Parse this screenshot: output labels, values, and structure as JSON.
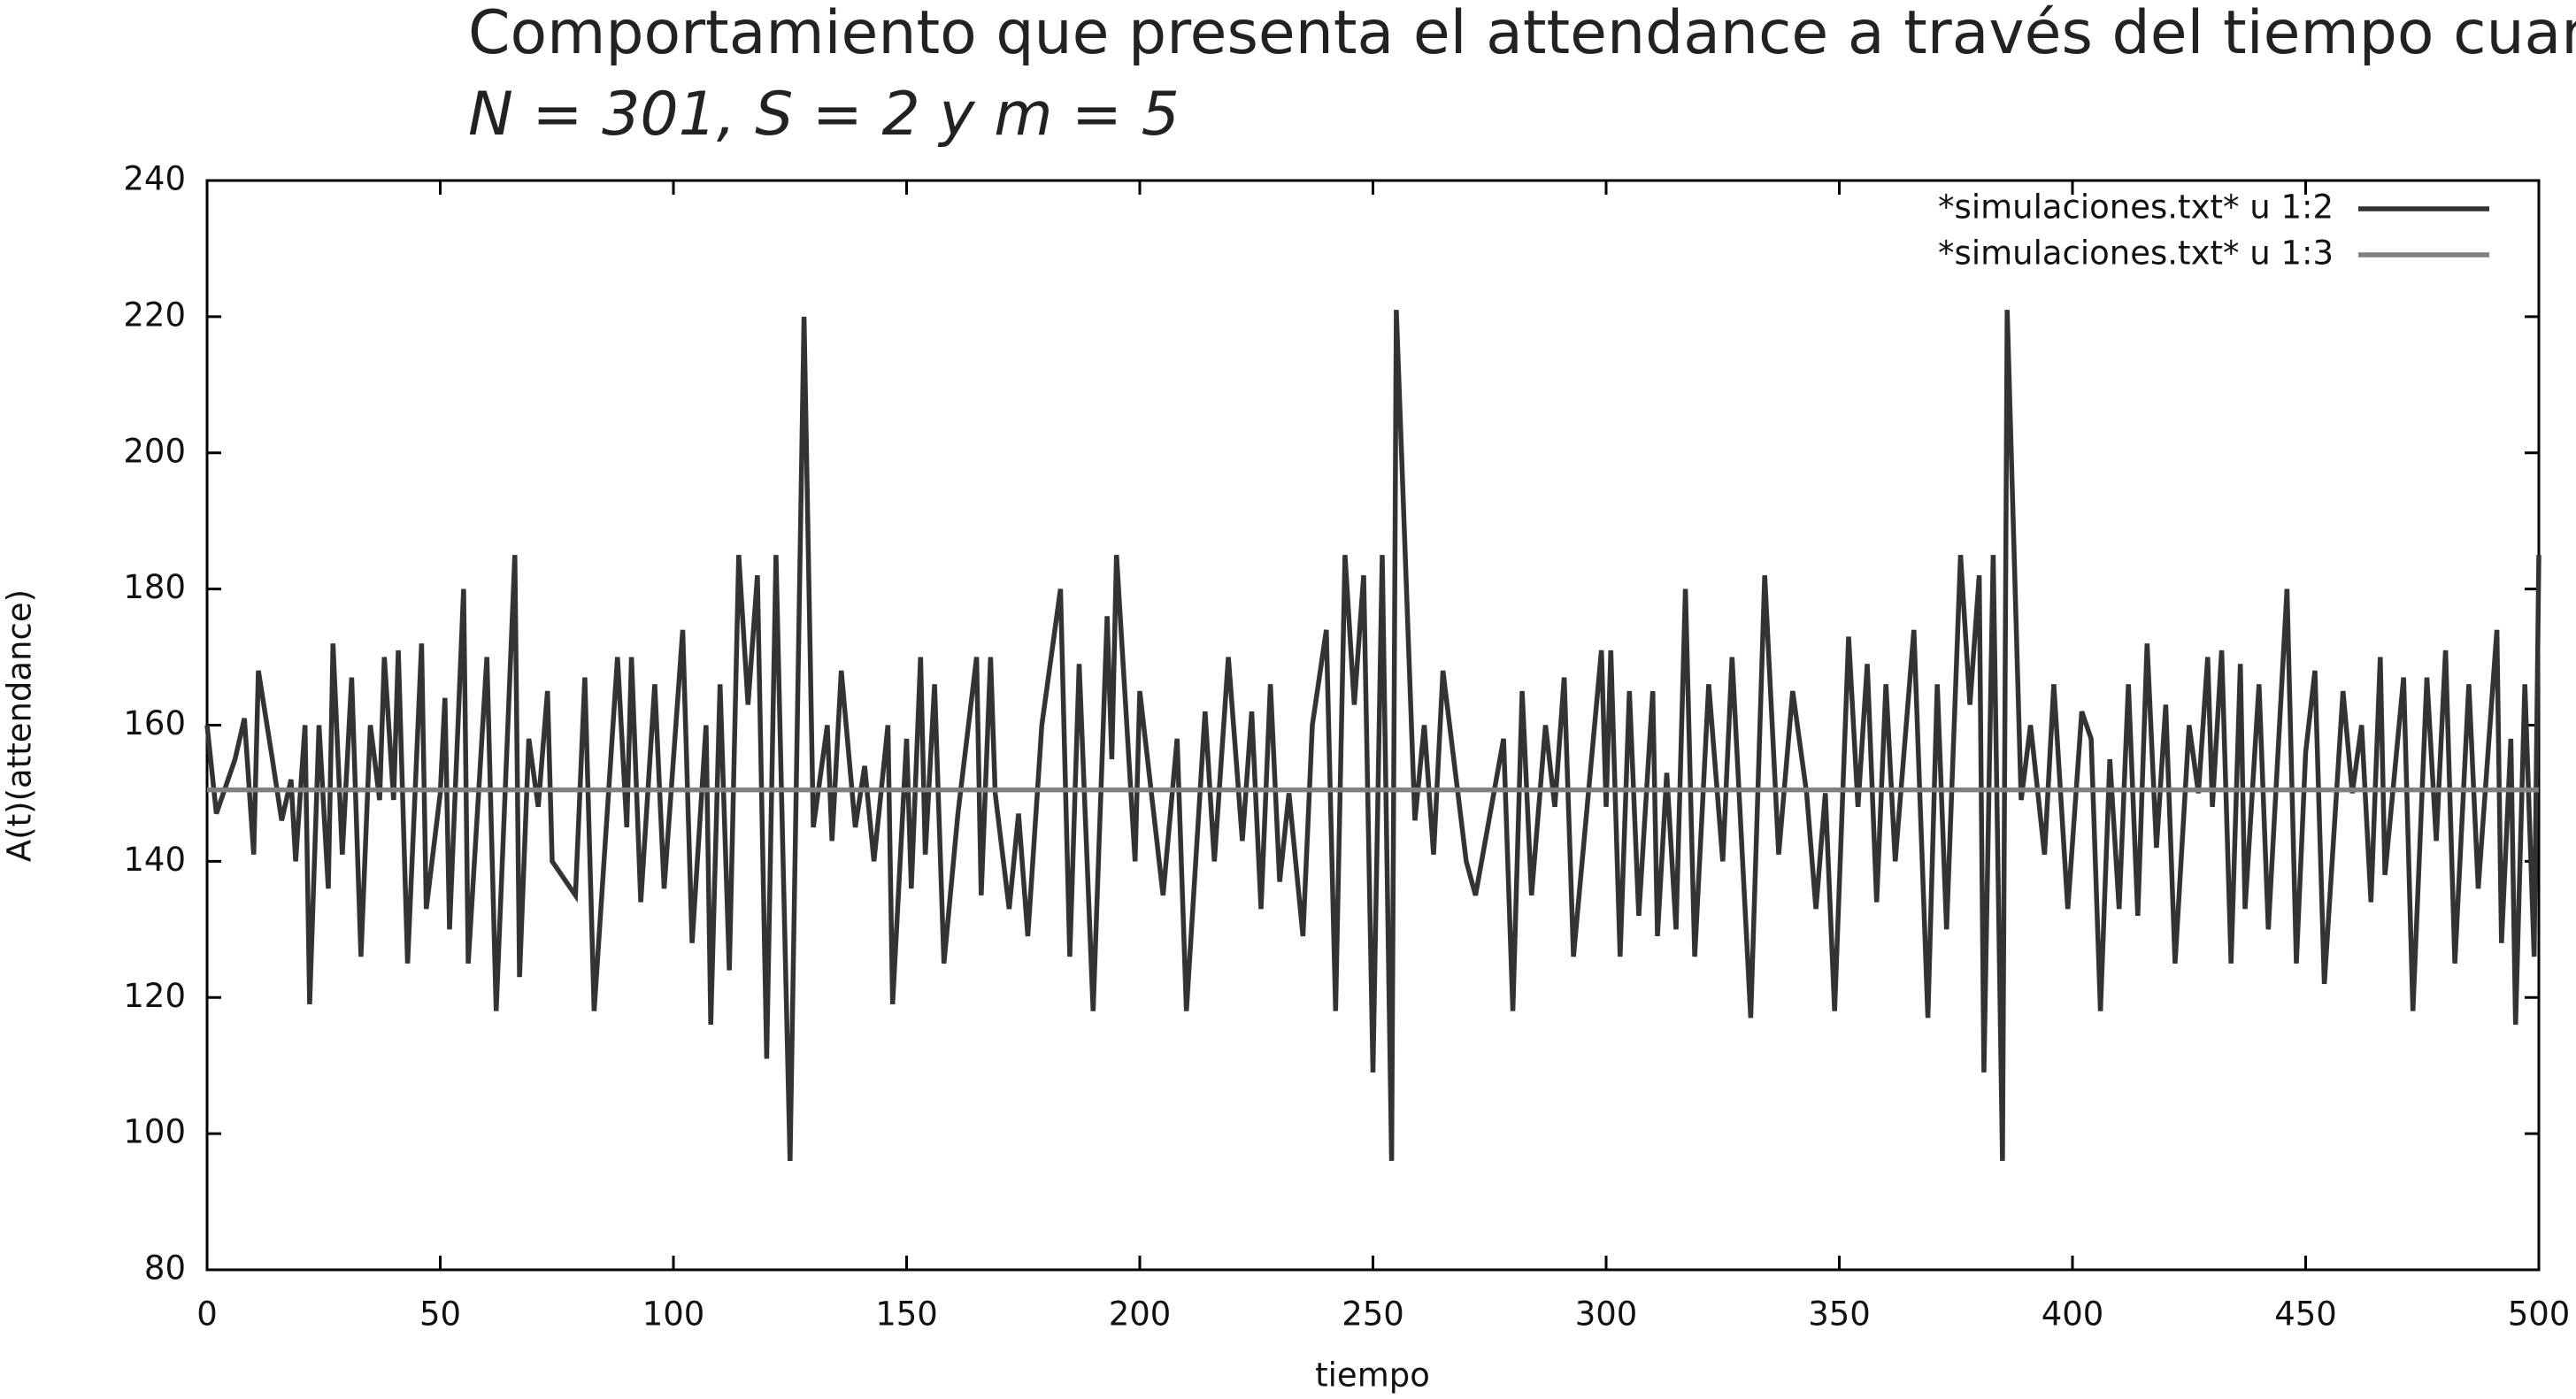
{
  "chart_data": {
    "type": "line",
    "title": [
      "Comportamiento que presenta el attendance a través del tiempo cuando",
      "N = 301, S = 2 y m = 5"
    ],
    "xlabel": "tiempo",
    "ylabel": "A(t)(attendance)",
    "xlim": [
      0,
      500
    ],
    "ylim": [
      80,
      240
    ],
    "xticks": [
      0,
      50,
      100,
      150,
      200,
      250,
      300,
      350,
      400,
      450,
      500
    ],
    "yticks": [
      80,
      100,
      120,
      140,
      160,
      180,
      200,
      220,
      240
    ],
    "legend": "upper right",
    "series": [
      {
        "name": "*simulaciones.txt* u 1:2",
        "color": "#333333",
        "x": [
          0,
          2,
          6,
          8,
          10,
          11,
          14,
          16,
          18,
          19,
          21,
          22,
          24,
          26,
          27,
          29,
          31,
          33,
          35,
          37,
          38,
          40,
          41,
          43,
          46,
          47,
          50,
          51,
          52,
          55,
          56,
          60,
          62,
          66,
          67,
          69,
          71,
          73,
          74,
          79,
          81,
          83,
          88,
          90,
          91,
          93,
          96,
          98,
          102,
          104,
          107,
          108,
          110,
          112,
          114,
          116,
          118,
          120,
          122,
          125,
          128,
          130,
          133,
          134,
          136,
          139,
          141,
          143,
          146,
          147,
          150,
          151,
          153,
          154,
          156,
          158,
          161,
          165,
          166,
          168,
          169,
          172,
          174,
          176,
          179,
          183,
          185,
          187,
          190,
          193,
          194,
          195,
          199,
          200,
          205,
          208,
          210,
          214,
          216,
          219,
          222,
          224,
          226,
          228,
          230,
          232,
          235,
          237,
          240,
          242,
          244,
          246,
          248,
          250,
          252,
          254,
          255,
          259,
          261,
          263,
          265,
          270,
          272,
          278,
          280,
          282,
          284,
          287,
          289,
          291,
          293,
          299,
          300,
          301,
          303,
          305,
          307,
          310,
          311,
          313,
          315,
          317,
          319,
          322,
          325,
          327,
          331,
          334,
          337,
          340,
          343,
          345,
          347,
          349,
          352,
          354,
          356,
          358,
          360,
          362,
          366,
          369,
          371,
          373,
          376,
          378,
          380,
          381,
          383,
          385,
          386,
          389,
          391,
          394,
          396,
          399,
          402,
          404,
          406,
          408,
          410,
          412,
          414,
          416,
          418,
          420,
          422,
          425,
          427,
          429,
          430,
          432,
          434,
          436,
          437,
          440,
          442,
          446,
          448,
          450,
          452,
          454,
          458,
          460,
          462,
          464,
          466,
          467,
          471,
          473,
          476,
          478,
          480,
          482,
          485,
          487,
          491,
          492,
          494,
          495,
          497,
          499,
          500
        ],
        "values": [
          160,
          147,
          155,
          161,
          141,
          168,
          155,
          146,
          152,
          140,
          160,
          119,
          160,
          136,
          172,
          141,
          167,
          126,
          160,
          149,
          170,
          149,
          171,
          125,
          172,
          133,
          150,
          164,
          130,
          180,
          125,
          170,
          118,
          185,
          123,
          158,
          148,
          165,
          140,
          135,
          167,
          118,
          170,
          145,
          170,
          134,
          166,
          136,
          174,
          128,
          160,
          116,
          166,
          124,
          185,
          163,
          182,
          111,
          185,
          96,
          220,
          145,
          160,
          143,
          168,
          145,
          154,
          140,
          160,
          119,
          158,
          136,
          170,
          141,
          166,
          125,
          147,
          170,
          135,
          170,
          150,
          133,
          147,
          129,
          160,
          180,
          126,
          169,
          118,
          176,
          155,
          185,
          140,
          165,
          135,
          158,
          118,
          162,
          140,
          170,
          143,
          162,
          133,
          166,
          137,
          150,
          129,
          160,
          174,
          118,
          185,
          163,
          182,
          109,
          185,
          96,
          221,
          146,
          160,
          141,
          168,
          140,
          135,
          158,
          118,
          165,
          135,
          160,
          148,
          167,
          126,
          171,
          148,
          171,
          126,
          165,
          132,
          165,
          129,
          153,
          130,
          180,
          126,
          166,
          140,
          170,
          117,
          182,
          141,
          165,
          150,
          133,
          150,
          118,
          173,
          148,
          169,
          134,
          166,
          140,
          174,
          117,
          166,
          130,
          185,
          163,
          182,
          109,
          185,
          96,
          221,
          149,
          160,
          141,
          166,
          133,
          162,
          158,
          118,
          155,
          133,
          166,
          132,
          172,
          142,
          163,
          125,
          160,
          150,
          170,
          148,
          171,
          125,
          169,
          133,
          166,
          130,
          180,
          125,
          156,
          168,
          122,
          165,
          150,
          160,
          134,
          170,
          138,
          167,
          118,
          167,
          143,
          171,
          125,
          166,
          136,
          174,
          128,
          158,
          116,
          166,
          126,
          185
        ]
      },
      {
        "name": "*simulaciones.txt* u 1:3",
        "color": "#808080",
        "x": [
          0,
          500
        ],
        "values": [
          150.5,
          150.5
        ]
      }
    ]
  }
}
